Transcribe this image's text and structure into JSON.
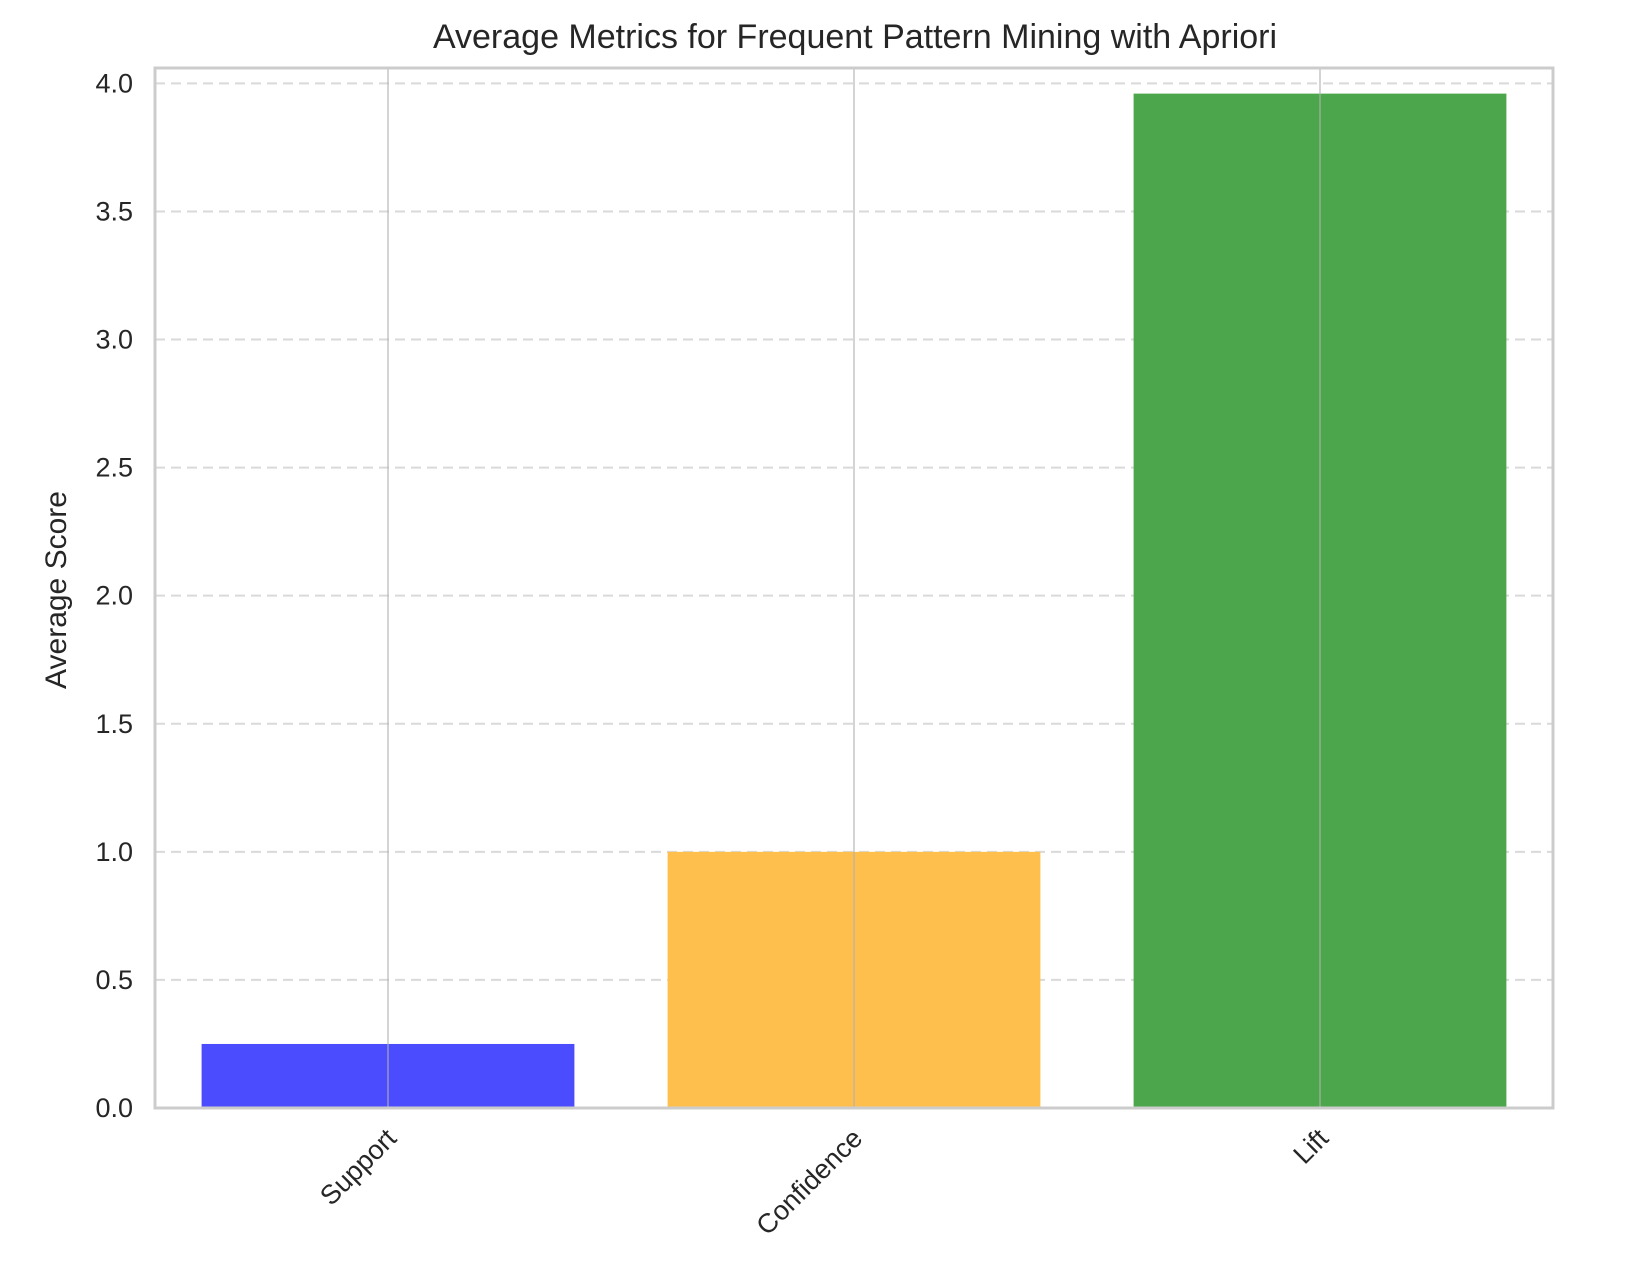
{
  "chart_data": {
    "type": "bar",
    "title": "Average Metrics for Frequent Pattern Mining with Apriori",
    "xlabel": "",
    "ylabel": "Average Score",
    "categories": [
      "Support",
      "Confidence",
      "Lift"
    ],
    "values": [
      0.25,
      1.0,
      3.96
    ],
    "colors": [
      "#4c4cff",
      "#ffbf4c",
      "#4ca64c"
    ],
    "ylim": [
      0,
      4.06
    ],
    "yticks": [
      "0.0",
      "0.5",
      "1.0",
      "1.5",
      "2.0",
      "2.5",
      "3.0",
      "3.5",
      "4.0"
    ],
    "ytick_values": [
      0,
      0.5,
      1.0,
      1.5,
      2.0,
      2.5,
      3.0,
      3.5,
      4.0
    ],
    "xtick_rotation": -45,
    "grid": {
      "horizontal": "dashed",
      "vertical": "solid"
    },
    "legend": "none"
  }
}
